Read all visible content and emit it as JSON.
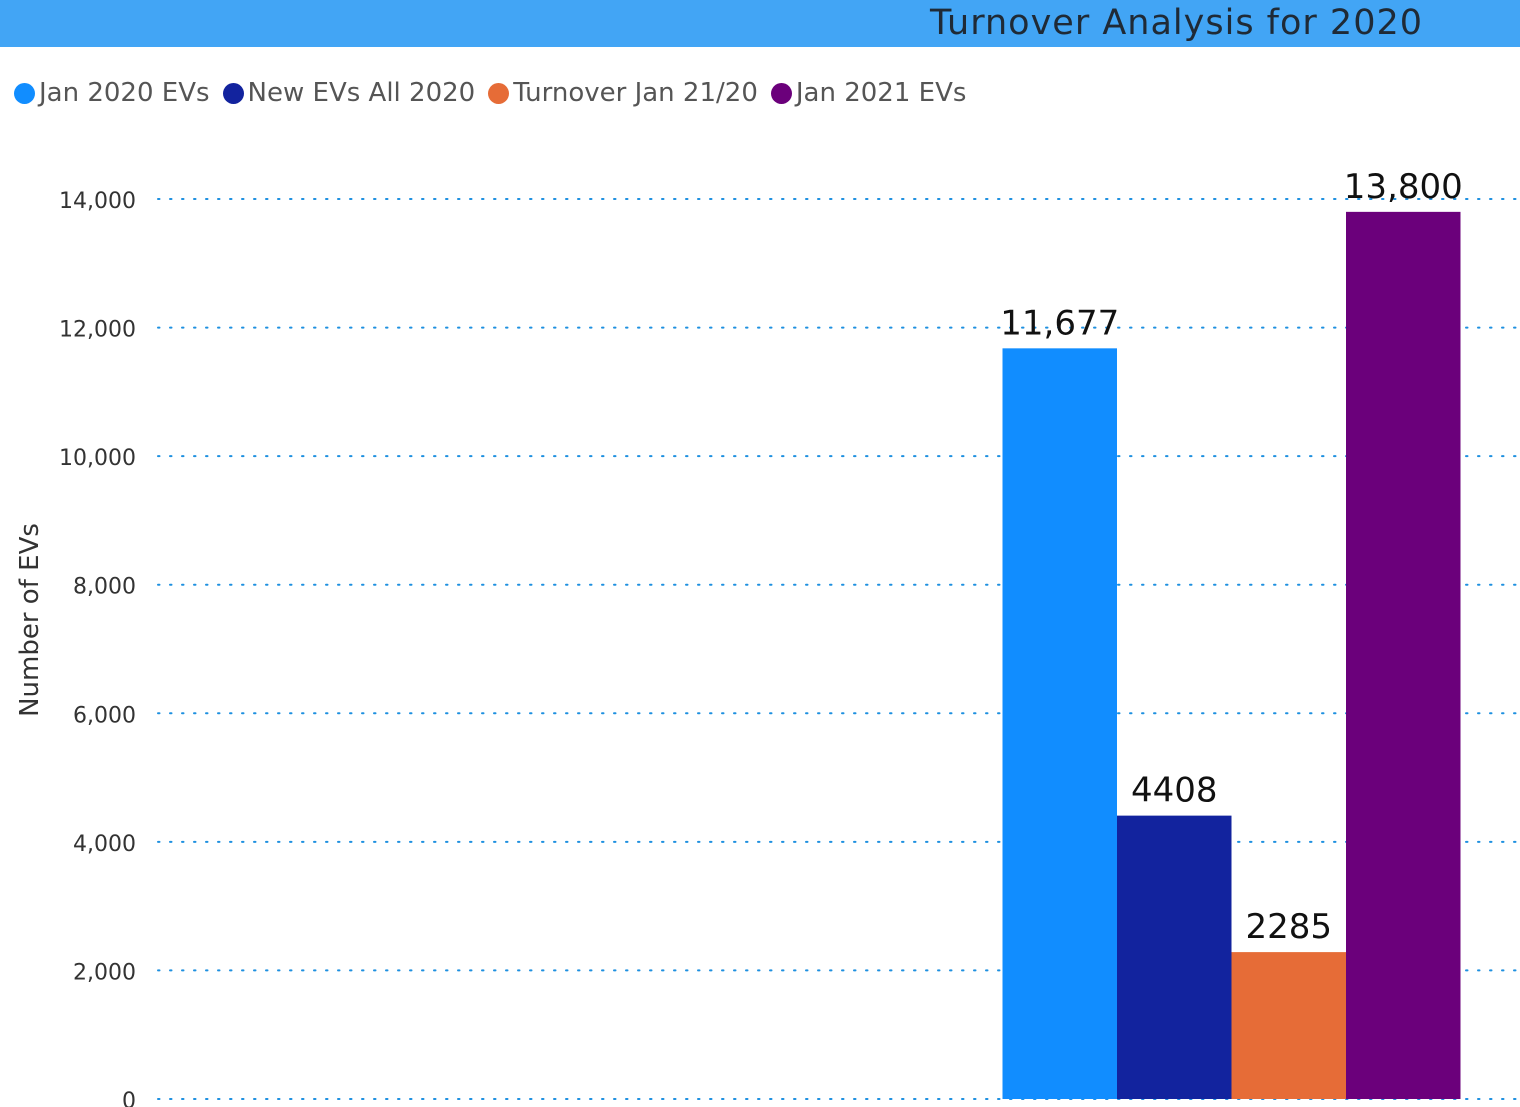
{
  "header": {
    "title": "Turnover Analysis for 2020",
    "background_color": "#42a5f5"
  },
  "chart_data": {
    "type": "bar",
    "title": "Turnover Analysis for 2020",
    "xlabel": "",
    "ylabel": "Number of EVs",
    "ylim": [
      0,
      14000
    ],
    "yticks": [
      {
        "value": 0,
        "label": "0"
      },
      {
        "value": 2000,
        "label": "2,000"
      },
      {
        "value": 4000,
        "label": "4,000"
      },
      {
        "value": 6000,
        "label": "6,000"
      },
      {
        "value": 8000,
        "label": "8,000"
      },
      {
        "value": 10000,
        "label": "10,000"
      },
      {
        "value": 12000,
        "label": "12,000"
      },
      {
        "value": 14000,
        "label": "14,000"
      }
    ],
    "grid": true,
    "legend_position": "top-left",
    "series": [
      {
        "name": "Jan 2020 EVs",
        "value": 11677,
        "data_label": "11,677",
        "color": "#118dff"
      },
      {
        "name": "New EVs All 2020",
        "value": 4408,
        "data_label": "4408",
        "color": "#12239e"
      },
      {
        "name": "Turnover Jan 21/20",
        "value": 2285,
        "data_label": "2285",
        "color": "#e66c37"
      },
      {
        "name": "Jan 2021 EVs",
        "value": 13800,
        "data_label": "13,800",
        "color": "#6b007b"
      }
    ]
  }
}
